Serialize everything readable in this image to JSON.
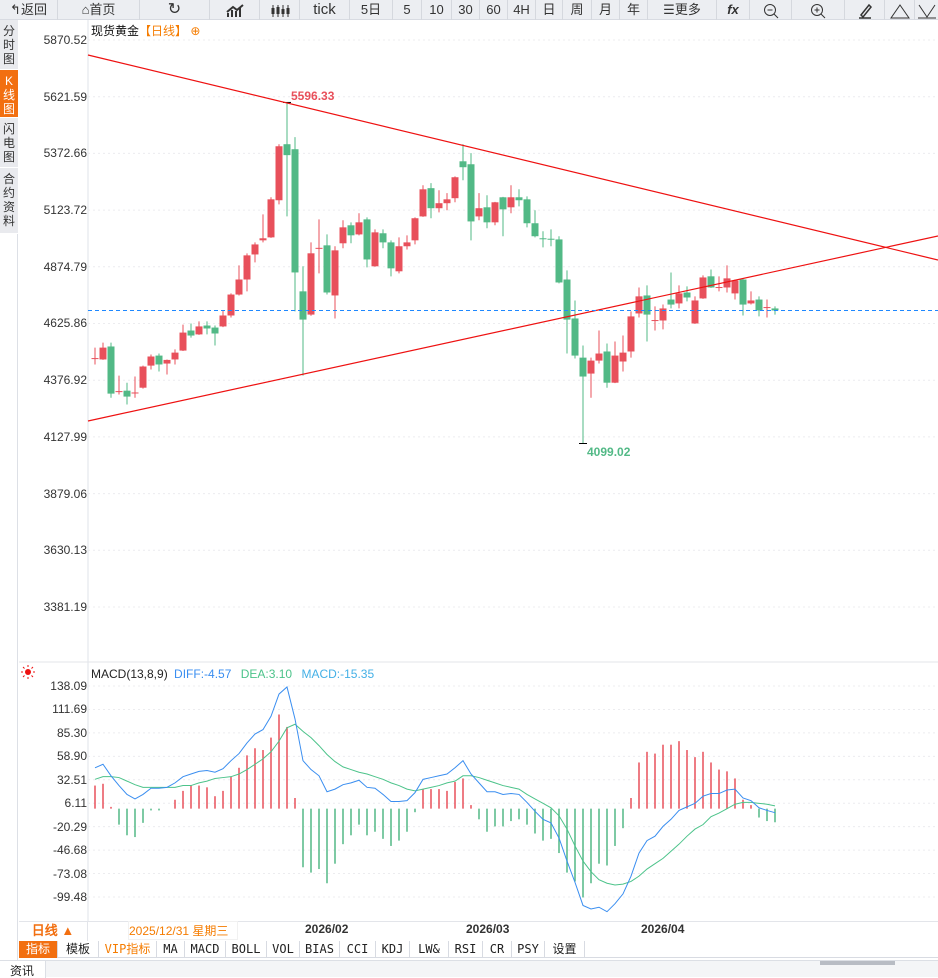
{
  "toolbar": {
    "back": "返回",
    "home": "首页",
    "tick": "tick",
    "five_day": "5日",
    "periods": [
      "5",
      "10",
      "30",
      "60",
      "4H",
      "日",
      "周",
      "月",
      "年"
    ],
    "more": "更多",
    "fx": "fx"
  },
  "sidebar": [
    "分时图",
    "K线图",
    "闪电图",
    "合约资料"
  ],
  "header": {
    "instrument": "现货黄金",
    "period": "【日线】"
  },
  "macd_header": {
    "name": "MACD(13,8,9)",
    "diff": "DIFF:-4.57",
    "dea": "DEA:3.10",
    "macd": "MACD:-15.35"
  },
  "period_button": "日线 ▲",
  "cursor_date": "2025/12/31 星期三",
  "indicator_tabs": [
    "指标",
    "模板",
    "VIP指标",
    "MA",
    "MACD",
    "BOLL",
    "VOL",
    "BIAS",
    "CCI",
    "KDJ",
    "LW&",
    "RSI",
    "CR",
    "PSY",
    "设置"
  ],
  "bottom_tab": "资讯",
  "colors": {
    "up": "#e8505b",
    "down": "#52b986",
    "diff": "#3a8ef0",
    "dea": "#4cc38a",
    "accent": "#f26f10",
    "trend": "#ee1111",
    "last": "#1e88ff"
  },
  "chart_data": [
    {
      "type": "candlestick",
      "title": "现货黄金 日线",
      "ylim": [
        3381.19,
        5870.52
      ],
      "yticks": [
        "5870.52",
        "5621.59",
        "5372.66",
        "5123.72",
        "4874.79",
        "4625.86",
        "4376.92",
        "4127.99",
        "3879.06",
        "3630.13",
        "3381.19"
      ],
      "xticks": [
        {
          "label": "2026/02",
          "index": 26
        },
        {
          "label": "2026/03",
          "index": 46
        },
        {
          "label": "2026/04",
          "index": 68
        }
      ],
      "annotations": [
        {
          "label": "5596.33",
          "type": "high",
          "index": 24
        },
        {
          "label": "4099.02",
          "type": "low",
          "index": 61
        }
      ],
      "ohlc": [
        [
          4472,
          4520,
          4446,
          4474
        ],
        [
          4468,
          4542,
          4466,
          4520
        ],
        [
          4525,
          4542,
          4300,
          4318
        ],
        [
          4327,
          4397,
          4314,
          4329
        ],
        [
          4331,
          4366,
          4270,
          4305
        ],
        [
          4320,
          4393,
          4300,
          4323
        ],
        [
          4344,
          4441,
          4340,
          4437
        ],
        [
          4441,
          4490,
          4424,
          4481
        ],
        [
          4485,
          4494,
          4415,
          4446
        ],
        [
          4450,
          4468,
          4402,
          4466
        ],
        [
          4468,
          4512,
          4446,
          4498
        ],
        [
          4507,
          4621,
          4505,
          4586
        ],
        [
          4595,
          4626,
          4564,
          4573
        ],
        [
          4578,
          4635,
          4576,
          4613
        ],
        [
          4617,
          4635,
          4578,
          4604
        ],
        [
          4608,
          4617,
          4529,
          4582
        ],
        [
          4613,
          4683,
          4610,
          4661
        ],
        [
          4661,
          4758,
          4652,
          4753
        ],
        [
          4753,
          4881,
          4749,
          4819
        ],
        [
          4819,
          4934,
          4767,
          4925
        ],
        [
          4929,
          4982,
          4894,
          4973
        ],
        [
          4991,
          5105,
          4982,
          5000
        ],
        [
          5004,
          5180,
          5002,
          5171
        ],
        [
          5167,
          5413,
          5149,
          5404
        ],
        [
          5413,
          5596.33,
          5096,
          5365
        ],
        [
          5391,
          5444,
          4679,
          4850
        ],
        [
          4767,
          4877,
          4397,
          4643
        ],
        [
          4665,
          4982,
          4660,
          4934
        ],
        [
          4956,
          5083,
          4846,
          4958
        ],
        [
          4969,
          5017,
          4753,
          4762
        ],
        [
          4749,
          4965,
          4648,
          4947
        ],
        [
          4978,
          5079,
          4956,
          5048
        ],
        [
          5057,
          5070,
          4978,
          5013
        ],
        [
          5017,
          5110,
          5013,
          5070
        ],
        [
          5083,
          5092,
          4872,
          4907
        ],
        [
          4877,
          5039,
          4875,
          5026
        ],
        [
          5022,
          5039,
          4956,
          4982
        ],
        [
          4982,
          4991,
          4833,
          4868
        ],
        [
          4855,
          5004,
          4846,
          4965
        ],
        [
          4965,
          5013,
          4951,
          4982
        ],
        [
          4991,
          5092,
          4973,
          5088
        ],
        [
          5096,
          5233,
          5094,
          5215
        ],
        [
          5220,
          5242,
          5088,
          5132
        ],
        [
          5132,
          5211,
          5114,
          5154
        ],
        [
          5154,
          5198,
          5123,
          5171
        ],
        [
          5176,
          5272,
          5158,
          5268
        ],
        [
          5338,
          5413,
          5255,
          5312
        ],
        [
          5325,
          5374,
          4991,
          5074
        ],
        [
          5096,
          5198,
          5079,
          5132
        ],
        [
          5136,
          5189,
          5044,
          5070
        ],
        [
          5070,
          5160,
          5057,
          5158
        ],
        [
          5180,
          5182,
          5009,
          5127
        ],
        [
          5136,
          5233,
          5110,
          5180
        ],
        [
          5180,
          5215,
          5140,
          5167
        ],
        [
          5171,
          5184,
          5048,
          5066
        ],
        [
          5066,
          5123,
          5004,
          5009
        ],
        [
          5000,
          5031,
          4960,
          4998
        ],
        [
          4998,
          5039,
          4965,
          4996
        ],
        [
          4995,
          5009,
          4802,
          4806
        ],
        [
          4819,
          4859,
          4494,
          4643
        ],
        [
          4648,
          4727,
          4472,
          4485
        ],
        [
          4476,
          4529,
          4099.02,
          4393
        ],
        [
          4406,
          4476,
          4300,
          4463
        ],
        [
          4463,
          4595,
          4450,
          4494
        ],
        [
          4503,
          4538,
          4344,
          4366
        ],
        [
          4366,
          4547,
          4364,
          4485
        ],
        [
          4459,
          4573,
          4415,
          4498
        ],
        [
          4503,
          4679,
          4476,
          4657
        ],
        [
          4670,
          4784,
          4652,
          4745
        ],
        [
          4749,
          4793,
          4547,
          4665
        ],
        [
          4639,
          4701,
          4595,
          4641
        ],
        [
          4639,
          4709,
          4600,
          4692
        ],
        [
          4731,
          4850,
          4692,
          4709
        ],
        [
          4714,
          4793,
          4692,
          4758
        ],
        [
          4762,
          4789,
          4723,
          4740
        ],
        [
          4626,
          4745,
          4624,
          4727
        ],
        [
          4736,
          4837,
          4734,
          4828
        ],
        [
          4833,
          4863,
          4782,
          4784
        ],
        [
          4784,
          4833,
          4767,
          4786
        ],
        [
          4784,
          4881,
          4762,
          4824
        ],
        [
          4758,
          4819,
          4731,
          4815
        ],
        [
          4819,
          4824,
          4661,
          4709
        ],
        [
          4714,
          4767,
          4709,
          4727
        ],
        [
          4731,
          4745,
          4657,
          4683
        ],
        [
          4696,
          4731,
          4652,
          4698
        ],
        [
          4692,
          4701,
          4665,
          4683
        ]
      ]
    },
    {
      "type": "line+bar",
      "title": "MACD(13,8,9)",
      "ylim": [
        -99.48,
        138.09
      ],
      "yticks": [
        "138.09",
        "111.69",
        "85.30",
        "58.90",
        "32.51",
        "6.11",
        "-20.29",
        "-46.68",
        "-73.08",
        "-99.48"
      ],
      "series": [
        {
          "name": "DIFF",
          "values": [
            46,
            50,
            37,
            26,
            16,
            11,
            16,
            23,
            23,
            24,
            29,
            36,
            39,
            42,
            43,
            41,
            45,
            54,
            62,
            74,
            84,
            89,
            104,
            129,
            137,
            101,
            54,
            44,
            37,
            19,
            22,
            27,
            29,
            32,
            24,
            23,
            16,
            8,
            8,
            9,
            18,
            33,
            35,
            37,
            39,
            46,
            54,
            39,
            29,
            19,
            19,
            16,
            17,
            16,
            7,
            -3,
            -12,
            -16,
            -33,
            -59,
            -83,
            -109,
            -113,
            -111,
            -116,
            -107,
            -96,
            -76,
            -50,
            -36,
            -31,
            -20,
            -12,
            -2,
            2,
            6,
            14,
            17,
            17,
            21,
            22,
            12,
            9,
            1,
            -2,
            -4.57
          ]
        },
        {
          "name": "DEA",
          "values": [
            33,
            36,
            36,
            35,
            31,
            27,
            24,
            24,
            24,
            24,
            24,
            26,
            26,
            29,
            31,
            34,
            35,
            36,
            39,
            44,
            50,
            56,
            64,
            76,
            91,
            95,
            87,
            80,
            71,
            61,
            53,
            47,
            44,
            41,
            39,
            36,
            33,
            29,
            26,
            22,
            20,
            22,
            24,
            26,
            29,
            31,
            37,
            37,
            35,
            32,
            29,
            26,
            24,
            22,
            16,
            11,
            6,
            1,
            -8,
            -23,
            -42,
            -59,
            -71,
            -80,
            -84,
            -86,
            -85,
            -82,
            -76,
            -68,
            -62,
            -56,
            -48,
            -40,
            -31,
            -23,
            -18,
            -9,
            -5,
            0,
            5,
            7,
            7,
            6,
            5,
            3.1
          ]
        }
      ],
      "macd_formula": "2*(DIFF-DEA)"
    }
  ]
}
